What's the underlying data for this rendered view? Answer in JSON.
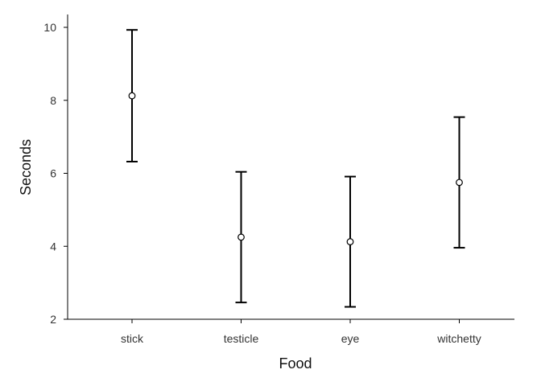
{
  "chart_data": {
    "type": "scatter",
    "xlabel": "Food",
    "ylabel": "Seconds",
    "categories": [
      "stick",
      "testicle",
      "eye",
      "witchetty"
    ],
    "series": [
      {
        "means": [
          8.125,
          4.25,
          4.125,
          5.75
        ],
        "lower": [
          6.32,
          2.46,
          2.34,
          3.96
        ],
        "upper": [
          9.93,
          6.04,
          5.91,
          7.54
        ]
      }
    ],
    "ylim": [
      2,
      10
    ],
    "yticks": [
      2,
      4,
      6,
      8,
      10
    ],
    "grid": false,
    "legend": "none"
  }
}
